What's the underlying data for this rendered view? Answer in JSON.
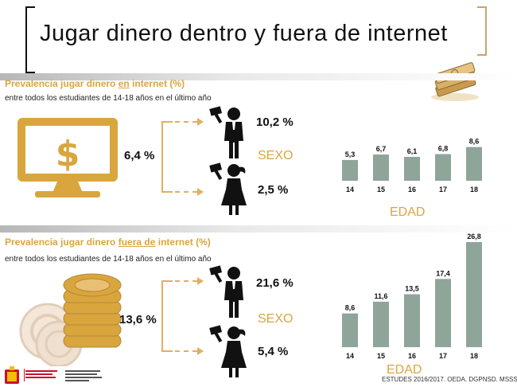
{
  "title": "Jugar dinero dentro y fuera de internet",
  "colors": {
    "accent": "#d9a63d",
    "bar": "#8fa59a",
    "figure": "#111111"
  },
  "icons": {
    "money": "banknotes-icon",
    "computer": "computer-dollar-icon",
    "chips": "casino-chips-icon",
    "male": "man-with-money-icon",
    "female": "woman-with-money-icon",
    "logo": "gobierno-espana-logo"
  },
  "logo_text": [
    "GOBIERNO DE ESPAÑA",
    "MINISTERIO DE SANIDAD, SERVICIOS SOCIALES E IGUALDAD"
  ],
  "sections": [
    {
      "title_pre": "Prevalencia jugar dinero ",
      "title_em": "en",
      "title_post": " internet (%)",
      "subtitle": "entre todos los estudiantes de 14-18 años en el último año",
      "total": "6,4 %",
      "male": "10,2 %",
      "female": "2,5 %",
      "sexo_label": "SEXO",
      "edad_label": "EDAD"
    },
    {
      "title_pre": "Prevalencia jugar dinero ",
      "title_em": "fuera de",
      "title_post": " internet (%)",
      "subtitle": "entre todos los estudiantes de 14-18 años en el último año",
      "total": "13,6 %",
      "male": "21,6 %",
      "female": "5,4 %",
      "sexo_label": "SEXO",
      "edad_label": "EDAD"
    }
  ],
  "footer": "ESTUDES 2016/2017. OEDA. DGPNSD. MSSSI",
  "chart_data": [
    {
      "type": "bar",
      "categories": [
        "14",
        "15",
        "16",
        "17",
        "18"
      ],
      "values": [
        5.3,
        6.7,
        6.1,
        6.8,
        8.6
      ],
      "value_labels": [
        "5,3",
        "6,7",
        "6,1",
        "6,8",
        "8,6"
      ],
      "xlabel": "EDAD"
    },
    {
      "type": "bar",
      "categories": [
        "14",
        "15",
        "16",
        "17",
        "18"
      ],
      "values": [
        8.6,
        11.6,
        13.5,
        17.4,
        26.8
      ],
      "value_labels": [
        "8,6",
        "11,6",
        "13,5",
        "17,4",
        "26,8"
      ],
      "xlabel": "EDAD"
    }
  ]
}
